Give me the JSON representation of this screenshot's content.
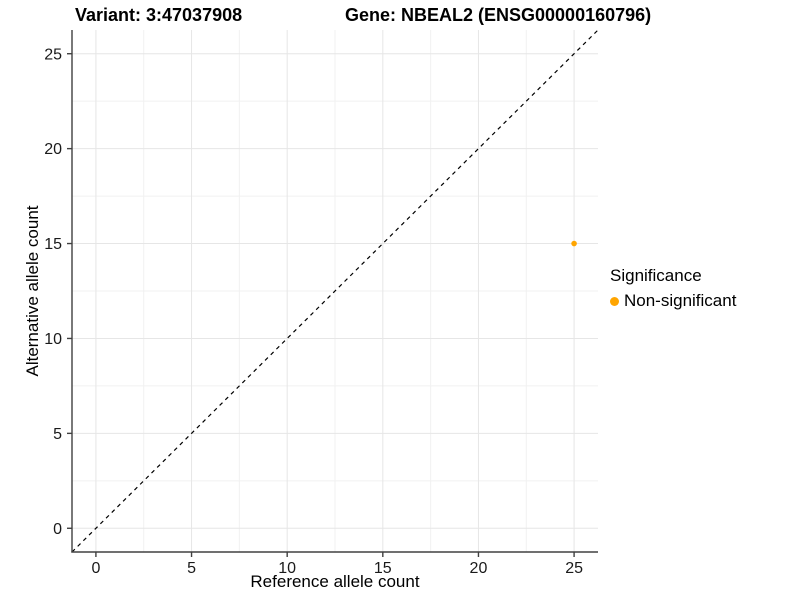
{
  "titles": {
    "variant": "Variant: 3:47037908",
    "gene": "Gene: NBEAL2 (ENSG00000160796)"
  },
  "axes": {
    "x_label": "Reference allele count",
    "y_label": "Alternative allele count"
  },
  "legend": {
    "title": "Significance",
    "items": [
      {
        "label": "Non-significant",
        "color": "#FFA500"
      }
    ]
  },
  "colors": {
    "point": "#FFA500",
    "grid_major": "#E6E6E6",
    "grid_minor": "#F1F1F1",
    "axis": "#404040",
    "text": "#1a1a1a",
    "reference_line": "#000000",
    "background": "#FFFFFF"
  },
  "chart_data": {
    "type": "scatter",
    "title": "Variant: 3:47037908   Gene: NBEAL2 (ENSG00000160796)",
    "xlabel": "Reference allele count",
    "ylabel": "Alternative allele count",
    "xlim": [
      -1.25,
      26.25
    ],
    "ylim": [
      -1.25,
      26.25
    ],
    "x_ticks": [
      0,
      5,
      10,
      15,
      20,
      25
    ],
    "y_ticks": [
      0,
      5,
      10,
      15,
      20,
      25
    ],
    "x_minor_ticks": [
      2.5,
      7.5,
      12.5,
      17.5,
      22.5
    ],
    "y_minor_ticks": [
      2.5,
      7.5,
      12.5,
      17.5,
      22.5
    ],
    "grid": true,
    "legend_position": "right",
    "series": [
      {
        "name": "Non-significant",
        "color": "#FFA500",
        "point_radius": 2.8,
        "points": [
          [
            25,
            15
          ]
        ]
      }
    ],
    "reference_line": {
      "type": "identity",
      "slope": 1,
      "intercept": 0,
      "style": "dashed",
      "color": "#000000"
    }
  }
}
